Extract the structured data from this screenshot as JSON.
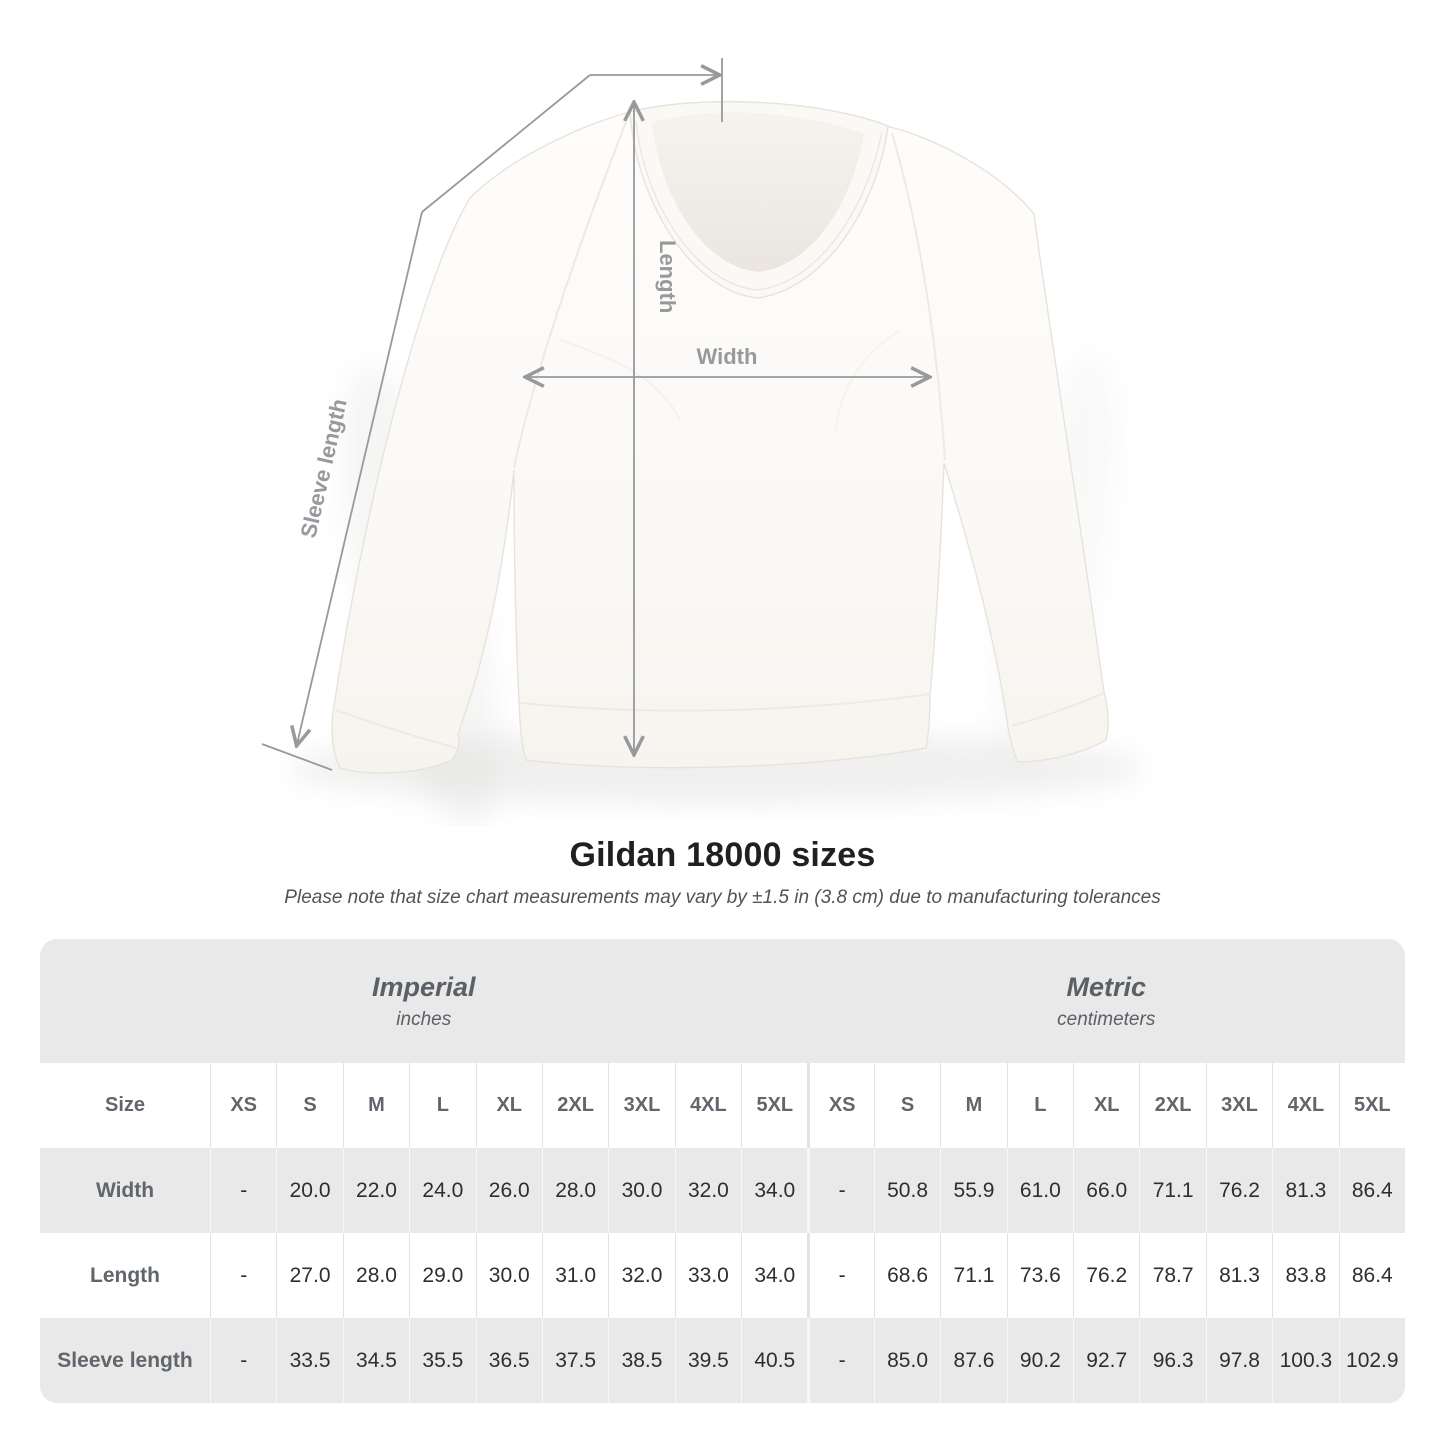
{
  "title": "Gildan 18000 sizes",
  "subtitle": "Please note that size chart measurements may vary by ±1.5 in (3.8 cm) due to manufacturing tolerances",
  "diagram": {
    "garment": "white crewneck sweatshirt",
    "labels": {
      "length": "Length",
      "width": "Width",
      "sleeve": "Sleeve length"
    },
    "line_color": "#97999c"
  },
  "colors": {
    "stripe_gray": "#e9e9ea",
    "header_text": "#60666b",
    "value_text": "#2c2f32",
    "measure_line": "#97999c"
  },
  "table": {
    "sections": [
      {
        "name": "Imperial",
        "unit": "inches"
      },
      {
        "name": "Metric",
        "unit": "centimeters"
      }
    ],
    "size_header": "Size",
    "sizes": [
      "XS",
      "S",
      "M",
      "L",
      "XL",
      "2XL",
      "3XL",
      "4XL",
      "5XL"
    ],
    "rows": [
      {
        "label": "Width",
        "imperial": [
          "-",
          "20.0",
          "22.0",
          "24.0",
          "26.0",
          "28.0",
          "30.0",
          "32.0",
          "34.0"
        ],
        "metric": [
          "-",
          "50.8",
          "55.9",
          "61.0",
          "66.0",
          "71.1",
          "76.2",
          "81.3",
          "86.4"
        ]
      },
      {
        "label": "Length",
        "imperial": [
          "-",
          "27.0",
          "28.0",
          "29.0",
          "30.0",
          "31.0",
          "32.0",
          "33.0",
          "34.0"
        ],
        "metric": [
          "-",
          "68.6",
          "71.1",
          "73.6",
          "76.2",
          "78.7",
          "81.3",
          "83.8",
          "86.4"
        ]
      },
      {
        "label": "Sleeve length",
        "imperial": [
          "-",
          "33.5",
          "34.5",
          "35.5",
          "36.5",
          "37.5",
          "38.5",
          "39.5",
          "40.5"
        ],
        "metric": [
          "-",
          "85.0",
          "87.6",
          "90.2",
          "92.7",
          "96.3",
          "97.8",
          "100.3",
          "102.9"
        ]
      }
    ]
  },
  "chart_data": {
    "type": "table",
    "title": "Gildan 18000 sizes",
    "subtitle": "Please note that size chart measurements may vary by ±1.5 in (3.8 cm) due to manufacturing tolerances",
    "column_groups": [
      "Imperial (inches)",
      "Metric (centimeters)"
    ],
    "columns": [
      "Size",
      "XS",
      "S",
      "M",
      "L",
      "XL",
      "2XL",
      "3XL",
      "4XL",
      "5XL",
      "XS",
      "S",
      "M",
      "L",
      "XL",
      "2XL",
      "3XL",
      "4XL",
      "5XL"
    ],
    "rows": [
      [
        "Width",
        "-",
        20.0,
        22.0,
        24.0,
        26.0,
        28.0,
        30.0,
        32.0,
        34.0,
        "-",
        50.8,
        55.9,
        61.0,
        66.0,
        71.1,
        76.2,
        81.3,
        86.4
      ],
      [
        "Length",
        "-",
        27.0,
        28.0,
        29.0,
        30.0,
        31.0,
        32.0,
        33.0,
        34.0,
        "-",
        68.6,
        71.1,
        73.6,
        76.2,
        78.7,
        81.3,
        83.8,
        86.4
      ],
      [
        "Sleeve length",
        "-",
        33.5,
        34.5,
        35.5,
        36.5,
        37.5,
        38.5,
        39.5,
        40.5,
        "-",
        85.0,
        87.6,
        90.2,
        92.7,
        96.3,
        97.8,
        100.3,
        102.9
      ]
    ]
  }
}
